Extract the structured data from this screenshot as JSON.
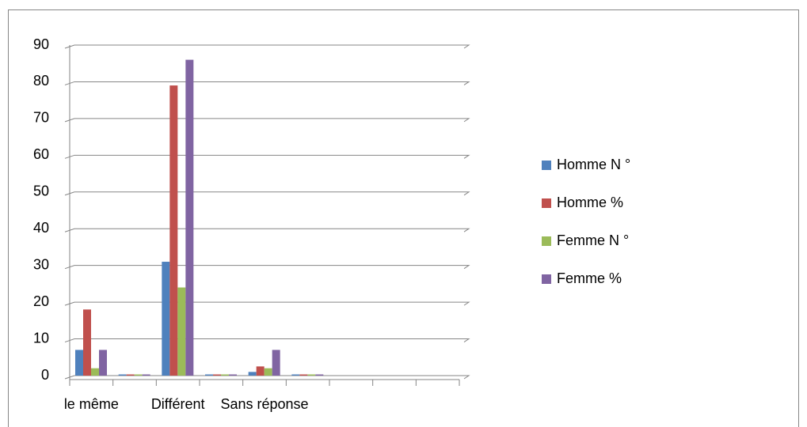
{
  "chart_data": {
    "type": "bar",
    "categories": [
      "le même",
      null,
      "Différent",
      null,
      "Sans réponse",
      null,
      null,
      null,
      null
    ],
    "series": [
      {
        "name": "Homme N °",
        "color": "#4f81bd",
        "values": [
          7,
          0,
          31,
          0,
          1,
          0,
          null,
          null,
          null
        ]
      },
      {
        "name": "Homme %",
        "color": "#c0504d",
        "values": [
          18,
          0,
          79,
          0,
          2.5,
          0,
          null,
          null,
          null
        ]
      },
      {
        "name": "Femme N °",
        "color": "#9bbb59",
        "values": [
          2,
          0,
          24,
          0,
          2,
          0,
          null,
          null,
          null
        ]
      },
      {
        "name": "Femme %",
        "color": "#8064a2",
        "values": [
          7,
          0,
          86,
          0,
          7,
          0,
          null,
          null,
          null
        ]
      }
    ],
    "ylim": [
      0,
      90
    ],
    "yticks": [
      0,
      10,
      20,
      30,
      40,
      50,
      60,
      70,
      80,
      90
    ],
    "grid": true,
    "legend": "right"
  }
}
